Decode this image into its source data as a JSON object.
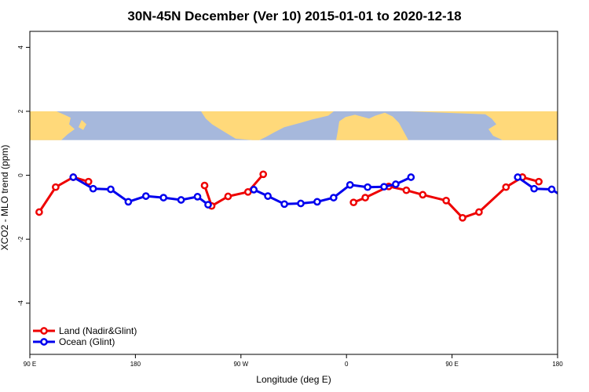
{
  "chart_data": {
    "type": "line",
    "title": "30N-45N December (Ver 10)   2015-01-01 to 2020-12-18",
    "xlabel": "Longitude (deg E)",
    "ylabel": "XCO2 - MLO trend (ppm)",
    "xlim": [
      90,
      540
    ],
    "ylim": [
      -5.6,
      4.5
    ],
    "x_ticks": [
      {
        "value": 90,
        "label": "90 E"
      },
      {
        "value": 180,
        "label": "180"
      },
      {
        "value": 270,
        "label": "90 W"
      },
      {
        "value": 360,
        "label": "0"
      },
      {
        "value": 450,
        "label": "90 E"
      },
      {
        "value": 540,
        "label": "180"
      }
    ],
    "y_ticks": [
      {
        "value": 4,
        "label": "4"
      },
      {
        "value": 2,
        "label": "2"
      },
      {
        "value": 0,
        "label": "0"
      },
      {
        "value": -2,
        "label": "-2"
      },
      {
        "value": -4,
        "label": "-4"
      }
    ],
    "map_band": {
      "ymin": 1.1,
      "ymax": 2.0,
      "land_color": "#FFD97A",
      "ocean_color": "#A6B8DC"
    },
    "legend": {
      "position": "bottom-left"
    },
    "series": [
      {
        "name": "Land (Nadir&Glint)",
        "color": "#EE0000",
        "segments": [
          {
            "x": [
              98,
              112,
              127,
              140
            ],
            "y": [
              -1.15,
              -0.37,
              -0.06,
              -0.2
            ]
          },
          {
            "x": [
              239,
              245,
              259,
              276,
              289
            ],
            "y": [
              -0.32,
              -0.96,
              -0.66,
              -0.52,
              0.03
            ]
          },
          {
            "x": [
              366,
              376,
              396,
              411,
              425,
              445,
              459,
              473,
              496,
              510
            ],
            "y": [
              -0.85,
              -0.7,
              -0.35,
              -0.47,
              -0.61,
              -0.79,
              -1.33,
              -1.15,
              -0.37,
              -0.06
            ]
          },
          {
            "x": [
              510,
              524
            ],
            "y": [
              -0.06,
              -0.2
            ]
          }
        ]
      },
      {
        "name": "Ocean (Glint)",
        "color": "#0000EE",
        "segments": [
          {
            "x": [
              127,
              144,
              159,
              174,
              189,
              204,
              219,
              233,
              242
            ],
            "y": [
              -0.06,
              -0.42,
              -0.44,
              -0.83,
              -0.65,
              -0.7,
              -0.77,
              -0.67,
              -0.92
            ]
          },
          {
            "x": [
              281,
              293,
              307,
              321,
              335,
              349,
              363,
              378,
              392,
              402,
              415
            ],
            "y": [
              -0.45,
              -0.65,
              -0.9,
              -0.88,
              -0.83,
              -0.7,
              -0.3,
              -0.37,
              -0.36,
              -0.28,
              -0.06
            ]
          },
          {
            "x": [
              506,
              520,
              535,
              551
            ],
            "y": [
              -0.06,
              -0.42,
              -0.44,
              -0.83
            ]
          }
        ]
      }
    ]
  }
}
